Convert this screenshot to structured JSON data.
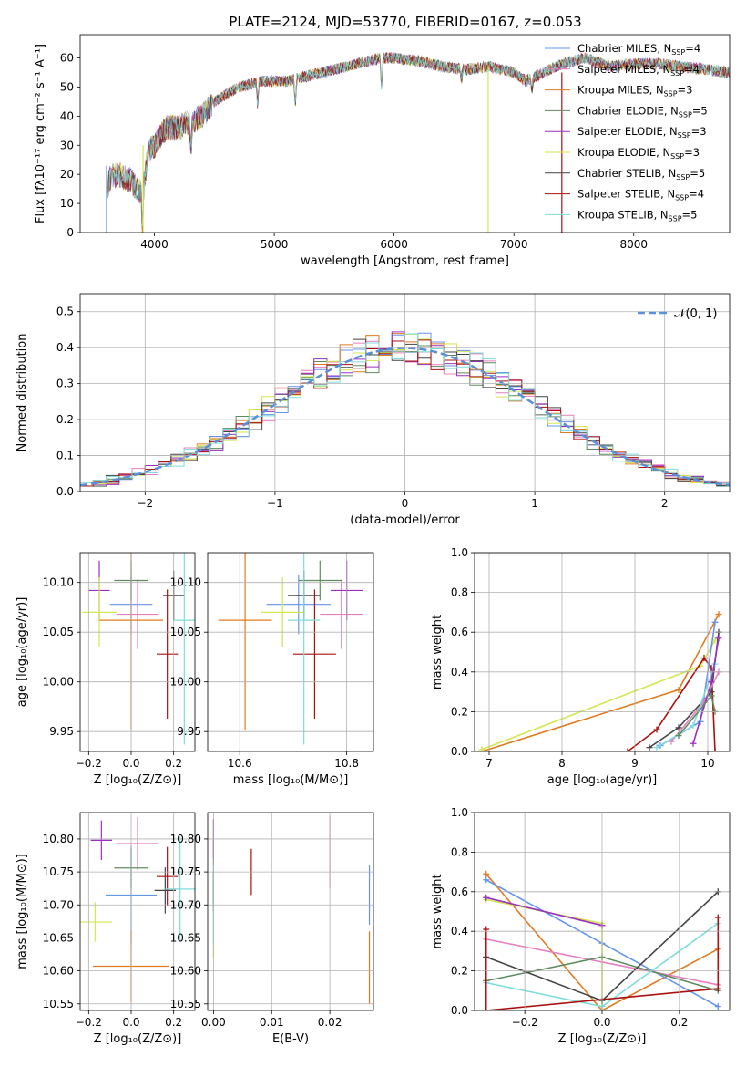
{
  "figure_title": "PLATE=2124, MJD=53770, FIBERID=0167, z=0.053",
  "colors": {
    "chabrier_miles": "#6495ed",
    "salpeter_miles": "#e67fbf",
    "kroupa_miles": "#e07b20",
    "chabrier_elodie": "#5f8c5f",
    "salpeter_elodie": "#9b30c0",
    "kroupa_elodie": "#d4e650",
    "chabrier_stelib": "#444444",
    "salpeter_stelib": "#aa1111",
    "kroupa_stelib": "#7fdbdb",
    "gaussian": "#5b8fd8"
  },
  "chart_data": [
    {
      "id": "spectrum",
      "type": "line",
      "title": "",
      "xlabel": "wavelength [Angstrom, rest frame]",
      "ylabel": "Flux [fλ10⁻¹⁷ erg cm⁻² s⁻¹ A⁻¹]",
      "xlim": [
        3380,
        8800
      ],
      "ylim": [
        0,
        68
      ],
      "xticks": [
        4000,
        5000,
        6000,
        7000,
        8000
      ],
      "yticks": [
        0,
        10,
        20,
        30,
        40,
        50,
        60
      ],
      "grid": false,
      "legend_position": "top-right",
      "legend": [
        {
          "label": "Chabrier MILES, N",
          "sub": "SSP",
          "suffix": "=4",
          "color_key": "chabrier_miles"
        },
        {
          "label": "Salpeter MILES, N",
          "sub": "SSP",
          "suffix": "=4",
          "color_key": "salpeter_miles"
        },
        {
          "label": "Kroupa MILES, N",
          "sub": "SSP",
          "suffix": "=3",
          "color_key": "kroupa_miles"
        },
        {
          "label": "Chabrier ELODIE, N",
          "sub": "SSP",
          "suffix": "=5",
          "color_key": "chabrier_elodie"
        },
        {
          "label": "Salpeter ELODIE, N",
          "sub": "SSP",
          "suffix": "=3",
          "color_key": "salpeter_elodie"
        },
        {
          "label": "Kroupa ELODIE, N",
          "sub": "SSP",
          "suffix": "=3",
          "color_key": "kroupa_elodie"
        },
        {
          "label": "Chabrier STELIB, N",
          "sub": "SSP",
          "suffix": "=5",
          "color_key": "chabrier_stelib"
        },
        {
          "label": "Salpeter STELIB, N",
          "sub": "SSP",
          "suffix": "=4",
          "color_key": "salpeter_stelib"
        },
        {
          "label": "Kroupa STELIB, N",
          "sub": "SSP",
          "suffix": "=5",
          "color_key": "kroupa_stelib"
        }
      ],
      "continuum": [
        [
          3600,
          18
        ],
        [
          3700,
          20
        ],
        [
          3800,
          18
        ],
        [
          3900,
          13
        ],
        [
          3950,
          28
        ],
        [
          4000,
          30
        ],
        [
          4100,
          36
        ],
        [
          4200,
          36
        ],
        [
          4300,
          38
        ],
        [
          4400,
          40
        ],
        [
          4500,
          45
        ],
        [
          4700,
          50
        ],
        [
          4900,
          52
        ],
        [
          5100,
          52
        ],
        [
          5300,
          54
        ],
        [
          5500,
          56
        ],
        [
          5700,
          58
        ],
        [
          5900,
          60
        ],
        [
          6000,
          60
        ],
        [
          6200,
          59
        ],
        [
          6400,
          57
        ],
        [
          6600,
          56
        ],
        [
          6800,
          57
        ],
        [
          7000,
          55
        ],
        [
          7100,
          52
        ],
        [
          7200,
          54
        ],
        [
          7400,
          58
        ],
        [
          7600,
          60
        ],
        [
          7800,
          57
        ],
        [
          8000,
          58
        ],
        [
          8200,
          58
        ],
        [
          8400,
          57
        ],
        [
          8600,
          56
        ],
        [
          8800,
          55
        ]
      ],
      "dips": [
        [
          3610,
          -4
        ],
        [
          3900,
          -12
        ],
        [
          4305,
          -10
        ],
        [
          4861,
          -8
        ],
        [
          5175,
          -10
        ],
        [
          5895,
          -12
        ],
        [
          6563,
          -4
        ],
        [
          7150,
          -5
        ]
      ],
      "drops": [
        [
          3600,
          "chabrier_miles",
          23
        ],
        [
          3905,
          "kroupa_elodie",
          30
        ],
        [
          6785,
          "kroupa_elodie",
          57
        ],
        [
          7400,
          "salpeter_stelib",
          55
        ]
      ]
    },
    {
      "id": "residuals",
      "type": "histogram",
      "title": "",
      "xlabel": "(data-model)/error",
      "ylabel": "Normed distribution",
      "xlim": [
        -2.5,
        2.5
      ],
      "ylim": [
        0,
        0.55
      ],
      "xticks": [
        -2,
        -1,
        0,
        1,
        2
      ],
      "yticks": [
        0.0,
        0.1,
        0.2,
        0.3,
        0.4,
        0.5
      ],
      "grid": true,
      "legend_position": "top-right",
      "legend": [
        {
          "label": "𝒩(0, 1)",
          "color_key": "gaussian",
          "style": "dashed"
        }
      ],
      "bin_width": 0.1,
      "series_color_keys": [
        "chabrier_miles",
        "salpeter_miles",
        "kroupa_miles",
        "chabrier_elodie",
        "salpeter_elodie",
        "kroupa_elodie",
        "chabrier_stelib",
        "salpeter_stelib",
        "kroupa_stelib"
      ]
    },
    {
      "id": "age-vs-z",
      "type": "scatter",
      "xlabel": "Z [log₁₀(Z/Z⊙)]",
      "ylabel": "age  [log₁₀(age/yr)]",
      "xlim": [
        -0.24,
        0.3
      ],
      "ylim": [
        9.93,
        10.13
      ],
      "xticks": [
        -0.2,
        0.0,
        0.2
      ],
      "xtick_labels": [
        "−0.2",
        "0.0",
        "0.2"
      ],
      "yticks": [
        9.95,
        10.0,
        10.05,
        10.1
      ],
      "grid": true,
      "points": [
        {
          "color_key": "chabrier_miles",
          "x": 0.0,
          "xerr": 0.1,
          "y": 10.078,
          "yerr": 0.03
        },
        {
          "color_key": "salpeter_miles",
          "x": 0.03,
          "xerr": 0.1,
          "y": 10.068,
          "yerr": 0.035
        },
        {
          "color_key": "kroupa_miles",
          "x": 0.0,
          "xerr": 0.15,
          "y": 10.062,
          "yerr": 0.11
        },
        {
          "color_key": "chabrier_elodie",
          "x": 0.0,
          "xerr": 0.08,
          "y": 10.102,
          "yerr": 0.02
        },
        {
          "color_key": "salpeter_elodie",
          "x": -0.15,
          "xerr": 0.05,
          "y": 10.092,
          "yerr": 0.03
        },
        {
          "color_key": "kroupa_elodie",
          "x": -0.15,
          "xerr": 0.08,
          "y": 10.07,
          "yerr": 0.035
        },
        {
          "color_key": "chabrier_stelib",
          "x": 0.2,
          "xerr": 0.05,
          "y": 10.087,
          "yerr": 0.025
        },
        {
          "color_key": "salpeter_stelib",
          "x": 0.17,
          "xerr": 0.05,
          "y": 10.028,
          "yerr": 0.065
        },
        {
          "color_key": "kroupa_stelib",
          "x": 0.25,
          "xerr": 0.05,
          "y": 10.062,
          "yerr": 0.125
        }
      ]
    },
    {
      "id": "age-vs-mass",
      "type": "scatter",
      "xlabel": "mass [log₁₀(M/M⊙)]",
      "ylabel": "",
      "xlim": [
        10.54,
        10.85
      ],
      "ylim": [
        9.93,
        10.13
      ],
      "xticks": [
        10.6,
        10.8
      ],
      "yticks": [
        9.95,
        10.0,
        10.05,
        10.1
      ],
      "grid": true,
      "points": [
        {
          "color_key": "chabrier_miles",
          "x": 10.71,
          "xerr": 0.06,
          "y": 10.078,
          "yerr": 0.03
        },
        {
          "color_key": "salpeter_miles",
          "x": 10.79,
          "xerr": 0.04,
          "y": 10.068,
          "yerr": 0.035
        },
        {
          "color_key": "kroupa_miles",
          "x": 10.61,
          "xerr": 0.05,
          "y": 10.062,
          "yerr": 0.11
        },
        {
          "color_key": "chabrier_elodie",
          "x": 10.75,
          "xerr": 0.04,
          "y": 10.102,
          "yerr": 0.02
        },
        {
          "color_key": "salpeter_elodie",
          "x": 10.8,
          "xerr": 0.03,
          "y": 10.092,
          "yerr": 0.03
        },
        {
          "color_key": "kroupa_elodie",
          "x": 10.68,
          "xerr": 0.04,
          "y": 10.07,
          "yerr": 0.035
        },
        {
          "color_key": "chabrier_stelib",
          "x": 10.72,
          "xerr": 0.03,
          "y": 10.087,
          "yerr": 0.025
        },
        {
          "color_key": "salpeter_stelib",
          "x": 10.74,
          "xerr": 0.04,
          "y": 10.028,
          "yerr": 0.065
        },
        {
          "color_key": "kroupa_stelib",
          "x": 10.72,
          "xerr": 0.03,
          "y": 10.062,
          "yerr": 0.125
        }
      ]
    },
    {
      "id": "mass-weight-vs-age",
      "type": "line",
      "xlabel": "age  [log₁₀(age/yr)]",
      "ylabel": "mass weight",
      "xlim": [
        6.8,
        10.3
      ],
      "ylim": [
        0.0,
        1.0
      ],
      "xticks": [
        7,
        8,
        9,
        10
      ],
      "yticks": [
        0.0,
        0.2,
        0.4,
        0.6,
        0.8,
        1.0
      ],
      "grid": true,
      "series": [
        {
          "color_key": "kroupa_miles",
          "x": [
            6.9,
            9.6,
            10.15
          ],
          "y": [
            0.0,
            0.31,
            0.69
          ]
        },
        {
          "color_key": "kroupa_elodie",
          "x": [
            6.9,
            9.9,
            10.1
          ],
          "y": [
            0.01,
            0.43,
            0.56
          ]
        },
        {
          "color_key": "salpeter_stelib",
          "x": [
            8.9,
            9.3,
            9.95,
            10.05,
            10.1
          ],
          "y": [
            0.0,
            0.11,
            0.47,
            0.42,
            0.0
          ]
        },
        {
          "color_key": "chabrier_stelib",
          "x": [
            9.2,
            9.6,
            10.05,
            10.15
          ],
          "y": [
            0.02,
            0.12,
            0.3,
            0.6
          ]
        },
        {
          "color_key": "chabrier_miles",
          "x": [
            9.35,
            9.9,
            10.1
          ],
          "y": [
            0.03,
            0.15,
            0.65
          ]
        },
        {
          "color_key": "salpeter_miles",
          "x": [
            9.5,
            9.95,
            10.15
          ],
          "y": [
            0.05,
            0.25,
            0.4
          ]
        },
        {
          "color_key": "kroupa_stelib",
          "x": [
            9.3,
            9.8,
            10.1
          ],
          "y": [
            0.02,
            0.13,
            0.44
          ]
        },
        {
          "color_key": "salpeter_elodie",
          "x": [
            9.8,
            10.05,
            10.15
          ],
          "y": [
            0.04,
            0.35,
            0.57
          ]
        },
        {
          "color_key": "chabrier_elodie",
          "x": [
            9.6,
            10.05,
            10.1
          ],
          "y": [
            0.08,
            0.28,
            0.2
          ]
        }
      ]
    },
    {
      "id": "mass-vs-z",
      "type": "scatter",
      "xlabel": "Z [log₁₀(Z/Z⊙)]",
      "ylabel": "mass [log₁₀(M/M⊙)]",
      "xlim": [
        -0.24,
        0.3
      ],
      "ylim": [
        10.54,
        10.84
      ],
      "xticks": [
        -0.2,
        0.0,
        0.2
      ],
      "xtick_labels": [
        "−0.2",
        "0.0",
        "0.2"
      ],
      "yticks": [
        10.55,
        10.6,
        10.65,
        10.7,
        10.75,
        10.8
      ],
      "grid": true,
      "points": [
        {
          "color_key": "chabrier_miles",
          "x": 0.0,
          "xerr": 0.12,
          "y": 10.715,
          "yerr": 0.075
        },
        {
          "color_key": "salpeter_miles",
          "x": 0.03,
          "xerr": 0.1,
          "y": 10.793,
          "yerr": 0.04
        },
        {
          "color_key": "kroupa_miles",
          "x": 0.0,
          "xerr": 0.18,
          "y": 10.607,
          "yerr": 0.055
        },
        {
          "color_key": "chabrier_elodie",
          "x": 0.0,
          "xerr": 0.08,
          "y": 10.756,
          "yerr": 0.03
        },
        {
          "color_key": "salpeter_elodie",
          "x": -0.14,
          "xerr": 0.05,
          "y": 10.798,
          "yerr": 0.03
        },
        {
          "color_key": "kroupa_elodie",
          "x": -0.17,
          "xerr": 0.08,
          "y": 10.674,
          "yerr": 0.03
        },
        {
          "color_key": "chabrier_stelib",
          "x": 0.16,
          "xerr": 0.05,
          "y": 10.722,
          "yerr": 0.035
        },
        {
          "color_key": "salpeter_stelib",
          "x": 0.17,
          "xerr": 0.05,
          "y": 10.743,
          "yerr": 0.045
        },
        {
          "color_key": "kroupa_stelib",
          "x": 0.23,
          "xerr": 0.07,
          "y": 10.724,
          "yerr": 0.08
        }
      ]
    },
    {
      "id": "mass-vs-ebv",
      "type": "scatter",
      "xlabel": "E(B-V)",
      "ylabel": "",
      "xlim": [
        -0.001,
        0.0275
      ],
      "ylim": [
        10.54,
        10.84
      ],
      "xticks": [
        0.0,
        0.01,
        0.02
      ],
      "xtick_labels": [
        "0.00",
        "0.01",
        "0.02"
      ],
      "yticks": [
        10.55,
        10.6,
        10.65,
        10.7,
        10.75,
        10.8
      ],
      "grid": true,
      "points": [
        {
          "color_key": "chabrier_miles",
          "x": 0.0268,
          "xerr": 0,
          "y": 10.715,
          "yerr": 0.045
        },
        {
          "color_key": "salpeter_miles",
          "x": 0.02,
          "xerr": 0,
          "y": 10.78,
          "yerr": 0.055
        },
        {
          "color_key": "kroupa_miles",
          "x": 0.0268,
          "xerr": 0,
          "y": 10.605,
          "yerr": 0.055
        },
        {
          "color_key": "chabrier_elodie",
          "x": 0.0,
          "xerr": 0,
          "y": 10.75,
          "yerr": 0.05
        },
        {
          "color_key": "salpeter_elodie",
          "x": 0.0,
          "xerr": 0,
          "y": 10.8,
          "yerr": 0.03
        },
        {
          "color_key": "kroupa_elodie",
          "x": 0.0,
          "xerr": 0,
          "y": 10.66,
          "yerr": 0.04
        },
        {
          "color_key": "chabrier_stelib",
          "x": 0.0,
          "xerr": 0,
          "y": 10.72,
          "yerr": 0.03
        },
        {
          "color_key": "salpeter_stelib",
          "x": 0.0065,
          "xerr": 0,
          "y": 10.75,
          "yerr": 0.035
        },
        {
          "color_key": "kroupa_stelib",
          "x": 0.0,
          "xerr": 0,
          "y": 10.7,
          "yerr": 0.06
        }
      ]
    },
    {
      "id": "mass-weight-vs-z",
      "type": "line",
      "xlabel": "Z [log₁₀(Z/Z⊙)]",
      "ylabel": "mass weight",
      "xlim": [
        -0.33,
        0.33
      ],
      "ylim": [
        0.0,
        1.0
      ],
      "xticks": [
        -0.2,
        0.0,
        0.2
      ],
      "xtick_labels": [
        "−0.2",
        "0.0",
        "0.2"
      ],
      "yticks": [
        0.0,
        0.2,
        0.4,
        0.6,
        0.8,
        1.0
      ],
      "grid": true,
      "series": [
        {
          "color_key": "kroupa_miles",
          "x": [
            -0.3,
            0.0,
            0.3
          ],
          "y": [
            0.69,
            0.0,
            0.31
          ]
        },
        {
          "color_key": "chabrier_miles",
          "x": [
            -0.3,
            0.0,
            0.3
          ],
          "y": [
            0.66,
            0.34,
            0.02
          ]
        },
        {
          "color_key": "kroupa_elodie",
          "x": [
            -0.3,
            0.0,
            0.0
          ],
          "y": [
            0.56,
            0.44,
            0.0
          ]
        },
        {
          "color_key": "salpeter_elodie",
          "x": [
            -0.3,
            0.0
          ],
          "y": [
            0.57,
            0.43
          ]
        },
        {
          "color_key": "salpeter_miles",
          "x": [
            -0.3,
            0.3
          ],
          "y": [
            0.36,
            0.13
          ]
        },
        {
          "color_key": "chabrier_elodie",
          "x": [
            -0.3,
            0.0,
            0.3
          ],
          "y": [
            0.15,
            0.27,
            0.1
          ]
        },
        {
          "color_key": "kroupa_stelib",
          "x": [
            -0.3,
            0.0,
            0.3
          ],
          "y": [
            0.14,
            0.02,
            0.44
          ]
        },
        {
          "color_key": "chabrier_stelib",
          "x": [
            -0.3,
            0.0,
            0.3
          ],
          "y": [
            0.27,
            0.05,
            0.6
          ]
        },
        {
          "color_key": "salpeter_stelib",
          "x": [
            -0.3,
            -0.3,
            0.3,
            0.3
          ],
          "y": [
            0.41,
            0.0,
            0.11,
            0.47
          ]
        }
      ]
    }
  ]
}
